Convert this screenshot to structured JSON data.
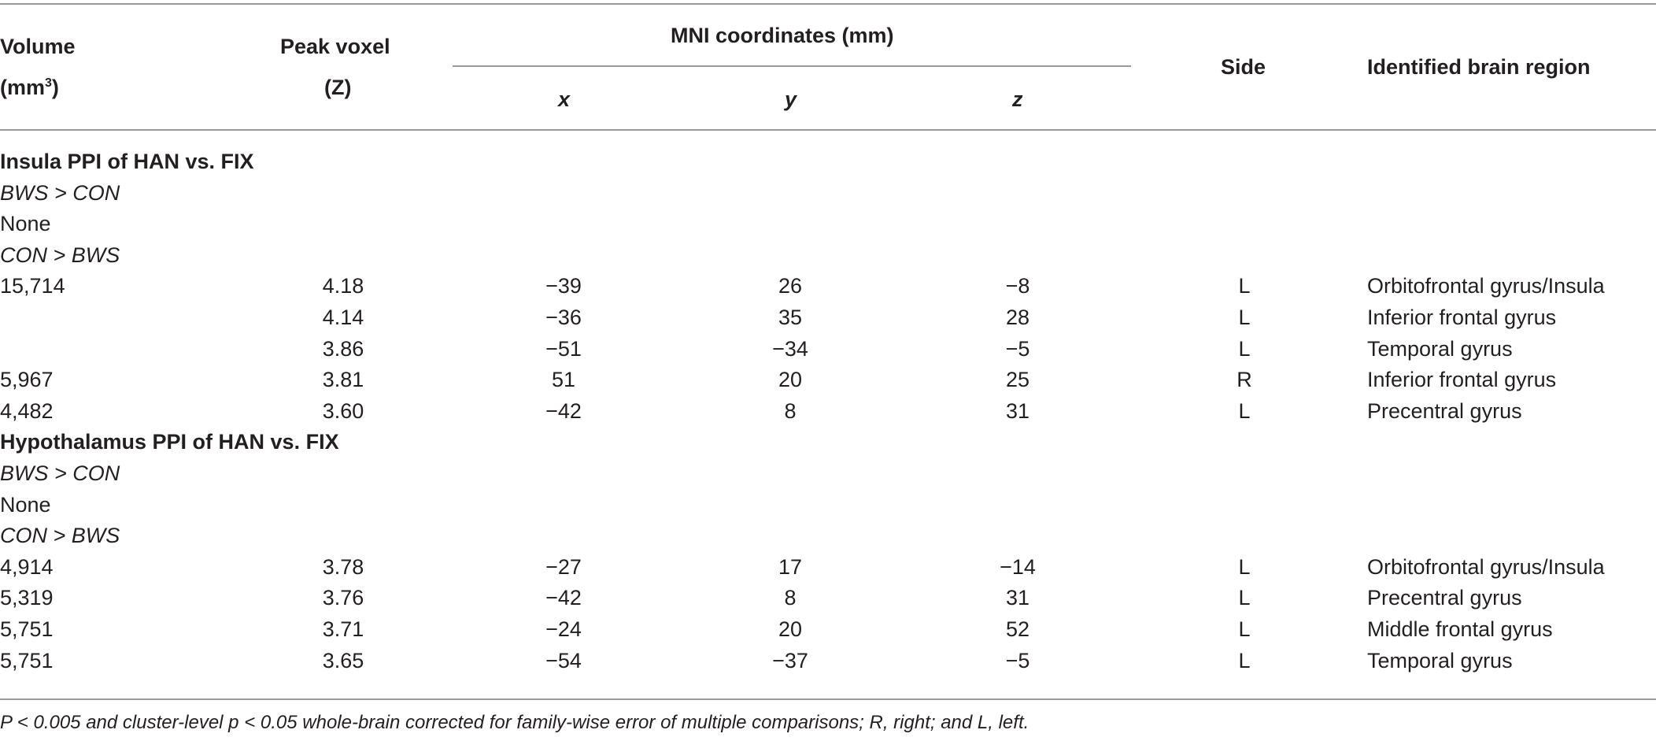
{
  "header": {
    "volume_line1": "Volume",
    "volume_line2": "(mm",
    "volume_sup": "3",
    "volume_close": ")",
    "peak_line1": "Peak voxel",
    "peak_line2": "(Z)",
    "mni": "MNI coordinates (mm)",
    "x": "x",
    "y": "y",
    "z": "z",
    "side": "Side",
    "region": "Identified brain region"
  },
  "rows": [
    {
      "type": "section",
      "volume": "Insula PPI of HAN vs. FIX"
    },
    {
      "type": "group",
      "volume": "BWS > CON"
    },
    {
      "type": "text",
      "volume": "None"
    },
    {
      "type": "group",
      "volume": "CON > BWS"
    },
    {
      "type": "data",
      "volume": "15,714",
      "peak": "4.18",
      "x": "−39",
      "y": "26",
      "z": "−8",
      "side": "L",
      "region": "Orbitofrontal gyrus/Insula"
    },
    {
      "type": "data",
      "volume": "",
      "peak": "4.14",
      "x": "−36",
      "y": "35",
      "z": "28",
      "side": "L",
      "region": "Inferior frontal gyrus"
    },
    {
      "type": "data",
      "volume": "",
      "peak": "3.86",
      "x": "−51",
      "y": "−34",
      "z": "−5",
      "side": "L",
      "region": "Temporal gyrus"
    },
    {
      "type": "data",
      "volume": "5,967",
      "peak": "3.81",
      "x": "51",
      "y": "20",
      "z": "25",
      "side": "R",
      "region": "Inferior frontal gyrus"
    },
    {
      "type": "data",
      "volume": "4,482",
      "peak": "3.60",
      "x": "−42",
      "y": "8",
      "z": "31",
      "side": "L",
      "region": "Precentral gyrus"
    },
    {
      "type": "section",
      "volume": "Hypothalamus PPI of HAN vs. FIX"
    },
    {
      "type": "group",
      "volume": "BWS > CON"
    },
    {
      "type": "text",
      "volume": "None"
    },
    {
      "type": "group",
      "volume": "CON > BWS"
    },
    {
      "type": "data",
      "volume": "4,914",
      "peak": "3.78",
      "x": "−27",
      "y": "17",
      "z": "−14",
      "side": "L",
      "region": "Orbitofrontal gyrus/Insula"
    },
    {
      "type": "data",
      "volume": "5,319",
      "peak": "3.76",
      "x": "−42",
      "y": "8",
      "z": "31",
      "side": "L",
      "region": "Precentral gyrus"
    },
    {
      "type": "data",
      "volume": "5,751",
      "peak": "3.71",
      "x": "−24",
      "y": "20",
      "z": "52",
      "side": "L",
      "region": "Middle frontal gyrus"
    },
    {
      "type": "data",
      "volume": "5,751",
      "peak": "3.65",
      "x": "−54",
      "y": "−37",
      "z": "−5",
      "side": "L",
      "region": "Temporal gyrus"
    }
  ],
  "footnote": "P < 0.005 and cluster-level p < 0.05 whole-brain corrected for family-wise error of multiple comparisons; R, right; and L, left."
}
